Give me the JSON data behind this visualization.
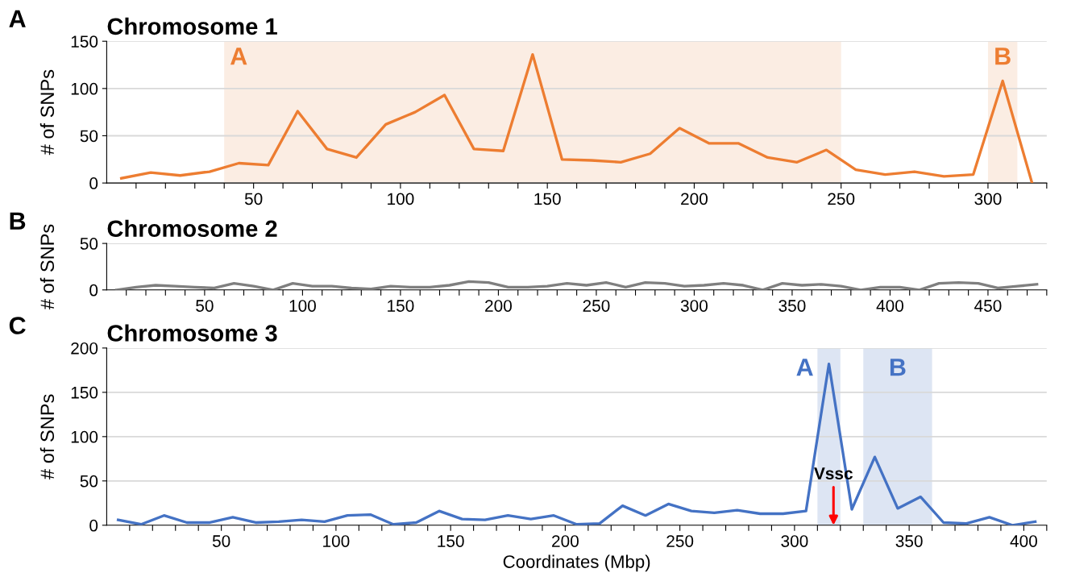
{
  "chart_data": [
    {
      "type": "line",
      "title": "Chromosome 1",
      "ylabel": "# of SNPs",
      "annotations": [
        "A"
      ],
      "grid": "y",
      "legend": false,
      "x": [
        5,
        15,
        25,
        35,
        45,
        55,
        65,
        75,
        85,
        95,
        105,
        115,
        125,
        135,
        145,
        155,
        165,
        175,
        185,
        195,
        205,
        215,
        225,
        235,
        245,
        255,
        265,
        275,
        285,
        295,
        305,
        315
      ],
      "series": [
        {
          "color": "#ed7d31",
          "values": [
            5,
            11,
            8,
            12,
            21,
            19,
            76,
            36,
            27,
            62,
            75,
            93,
            36,
            34,
            136,
            25,
            24,
            22,
            31,
            58,
            42,
            42,
            27,
            22,
            35,
            14,
            9,
            12,
            7,
            9,
            108,
            0
          ]
        }
      ],
      "xlim": [
        0,
        320
      ],
      "ylim": [
        0,
        150
      ],
      "yticks": [
        0,
        50,
        100,
        150
      ],
      "xticks": [
        {
          "value": 10,
          "label": null
        },
        {
          "value": 20,
          "label": null
        },
        {
          "value": 30,
          "label": null
        },
        {
          "value": 40,
          "label": null
        },
        50,
        {
          "value": 60,
          "label": null
        },
        {
          "value": 70,
          "label": null
        },
        {
          "value": 80,
          "label": null
        },
        {
          "value": 90,
          "label": null
        },
        100,
        {
          "value": 110,
          "label": null
        },
        {
          "value": 120,
          "label": null
        },
        {
          "value": 130,
          "label": null
        },
        {
          "value": 140,
          "label": null
        },
        150,
        {
          "value": 160,
          "label": null
        },
        {
          "value": 170,
          "label": null
        },
        {
          "value": 180,
          "label": null
        },
        {
          "value": 190,
          "label": null
        },
        200,
        {
          "value": 210,
          "label": null
        },
        {
          "value": 220,
          "label": null
        },
        {
          "value": 230,
          "label": null
        },
        {
          "value": 240,
          "label": null
        },
        250,
        {
          "value": 260,
          "label": null
        },
        {
          "value": 270,
          "label": null
        },
        {
          "value": 280,
          "label": null
        },
        {
          "value": 290,
          "label": null
        },
        300,
        {
          "value": 310,
          "label": null
        },
        {
          "value": 320,
          "label": null
        }
      ],
      "bands": [
        {
          "axis": "x",
          "from": 40,
          "to": 250,
          "label": "A",
          "color": "#fbede3"
        },
        {
          "axis": "x",
          "from": 300,
          "to": 310,
          "label": "B",
          "color": "#fbede3"
        }
      ]
    },
    {
      "type": "line",
      "title": "Chromosome 2",
      "ylabel": "# of SNPs",
      "annotations": [
        "B"
      ],
      "grid": "y",
      "legend": false,
      "x": [
        5,
        15,
        25,
        35,
        45,
        55,
        65,
        75,
        85,
        95,
        105,
        115,
        125,
        135,
        145,
        155,
        165,
        175,
        185,
        195,
        205,
        215,
        225,
        235,
        245,
        255,
        265,
        275,
        285,
        295,
        305,
        315,
        325,
        335,
        345,
        355,
        365,
        375,
        385,
        395,
        405,
        415,
        425,
        435,
        445,
        455,
        465,
        475
      ],
      "series": [
        {
          "color": "#7f7f7f",
          "values": [
            0,
            3,
            5,
            4,
            3,
            2,
            7,
            4,
            0,
            7,
            4,
            4,
            2,
            1,
            4,
            3,
            3,
            5,
            9,
            8,
            3,
            3,
            4,
            7,
            5,
            8,
            3,
            8,
            7,
            4,
            5,
            7,
            5,
            0,
            7,
            5,
            6,
            4,
            0,
            3,
            3,
            0,
            7,
            8,
            7,
            2,
            4,
            6
          ]
        }
      ],
      "xlim": [
        0,
        480
      ],
      "ylim": [
        0,
        50
      ],
      "yticks": [
        0,
        50
      ],
      "xticks": [
        {
          "value": 10,
          "label": null
        },
        {
          "value": 20,
          "label": null
        },
        {
          "value": 30,
          "label": null
        },
        {
          "value": 40,
          "label": null
        },
        50,
        {
          "value": 60,
          "label": null
        },
        {
          "value": 70,
          "label": null
        },
        {
          "value": 80,
          "label": null
        },
        {
          "value": 90,
          "label": null
        },
        100,
        {
          "value": 110,
          "label": null
        },
        {
          "value": 120,
          "label": null
        },
        {
          "value": 130,
          "label": null
        },
        {
          "value": 140,
          "label": null
        },
        150,
        {
          "value": 160,
          "label": null
        },
        {
          "value": 170,
          "label": null
        },
        {
          "value": 180,
          "label": null
        },
        {
          "value": 190,
          "label": null
        },
        200,
        {
          "value": 210,
          "label": null
        },
        {
          "value": 220,
          "label": null
        },
        {
          "value": 230,
          "label": null
        },
        {
          "value": 240,
          "label": null
        },
        250,
        {
          "value": 260,
          "label": null
        },
        {
          "value": 270,
          "label": null
        },
        {
          "value": 280,
          "label": null
        },
        {
          "value": 290,
          "label": null
        },
        300,
        {
          "value": 310,
          "label": null
        },
        {
          "value": 320,
          "label": null
        },
        {
          "value": 330,
          "label": null
        },
        {
          "value": 340,
          "label": null
        },
        350,
        {
          "value": 360,
          "label": null
        },
        {
          "value": 370,
          "label": null
        },
        {
          "value": 380,
          "label": null
        },
        {
          "value": 390,
          "label": null
        },
        400,
        {
          "value": 410,
          "label": null
        },
        {
          "value": 420,
          "label": null
        },
        {
          "value": 430,
          "label": null
        },
        {
          "value": 440,
          "label": null
        },
        450,
        {
          "value": 460,
          "label": null
        },
        {
          "value": 470,
          "label": null
        },
        {
          "value": 480,
          "label": null
        }
      ]
    },
    {
      "type": "line",
      "title": "Chromosome 3",
      "ylabel": "# of SNPs",
      "xlabel": "Coordinates (Mbp)",
      "grid": "y",
      "legend": false,
      "annotations": [
        "C",
        {
          "text": "Vssc",
          "x": 317,
          "y": 0
        }
      ],
      "x": [
        5,
        15,
        25,
        35,
        45,
        55,
        65,
        75,
        85,
        95,
        105,
        115,
        125,
        135,
        145,
        155,
        165,
        175,
        185,
        195,
        205,
        215,
        225,
        235,
        245,
        255,
        265,
        275,
        285,
        295,
        305,
        315,
        325,
        335,
        345,
        355,
        365,
        375,
        385,
        395,
        405
      ],
      "series": [
        {
          "color": "#4472c4",
          "values": [
            6,
            1,
            11,
            3,
            3,
            9,
            3,
            4,
            6,
            4,
            11,
            12,
            1,
            3,
            16,
            7,
            6,
            11,
            7,
            11,
            1,
            2,
            22,
            11,
            24,
            16,
            14,
            17,
            13,
            13,
            16,
            182,
            18,
            77,
            19,
            32,
            3,
            2,
            9,
            0,
            4
          ]
        }
      ],
      "xlim": [
        0,
        410
      ],
      "ylim": [
        0,
        200
      ],
      "yticks": [
        0,
        50,
        100,
        150,
        200
      ],
      "xticks": [
        {
          "value": 10,
          "label": null
        },
        {
          "value": 20,
          "label": null
        },
        {
          "value": 30,
          "label": null
        },
        {
          "value": 40,
          "label": null
        },
        50,
        {
          "value": 60,
          "label": null
        },
        {
          "value": 70,
          "label": null
        },
        {
          "value": 80,
          "label": null
        },
        {
          "value": 90,
          "label": null
        },
        100,
        {
          "value": 110,
          "label": null
        },
        {
          "value": 120,
          "label": null
        },
        {
          "value": 130,
          "label": null
        },
        {
          "value": 140,
          "label": null
        },
        150,
        {
          "value": 160,
          "label": null
        },
        {
          "value": 170,
          "label": null
        },
        {
          "value": 180,
          "label": null
        },
        {
          "value": 190,
          "label": null
        },
        200,
        {
          "value": 210,
          "label": null
        },
        {
          "value": 220,
          "label": null
        },
        {
          "value": 230,
          "label": null
        },
        {
          "value": 240,
          "label": null
        },
        250,
        {
          "value": 260,
          "label": null
        },
        {
          "value": 270,
          "label": null
        },
        {
          "value": 280,
          "label": null
        },
        {
          "value": 290,
          "label": null
        },
        300,
        {
          "value": 310,
          "label": null
        },
        {
          "value": 320,
          "label": null
        },
        {
          "value": 330,
          "label": null
        },
        {
          "value": 340,
          "label": null
        },
        350,
        {
          "value": 360,
          "label": null
        },
        {
          "value": 370,
          "label": null
        },
        {
          "value": 380,
          "label": null
        },
        {
          "value": 390,
          "label": null
        },
        400,
        {
          "value": 410,
          "label": null
        }
      ],
      "bands": [
        {
          "axis": "x",
          "from": 310,
          "to": 320,
          "label": "A",
          "color": "#dde5f3"
        },
        {
          "axis": "x",
          "from": 330,
          "to": 360,
          "label": "B",
          "color": "#dde5f3"
        }
      ]
    }
  ]
}
